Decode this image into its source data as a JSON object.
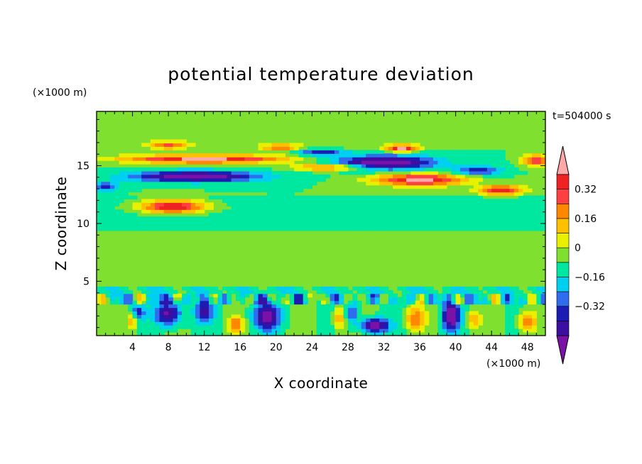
{
  "chart_data": {
    "type": "heatmap",
    "title": "potential temperature deviation",
    "xlabel": "X coordinate",
    "ylabel": "Z coordinate",
    "x_unit": "(×1000 m)",
    "y_unit": "(×1000 m)",
    "time_label": "t=504000 s",
    "xlim": [
      0,
      50
    ],
    "ylim": [
      0.3,
      19.7
    ],
    "x_ticks": [
      4,
      8,
      12,
      16,
      20,
      24,
      28,
      32,
      36,
      40,
      44,
      48
    ],
    "x_tick_labels": [
      "4",
      "8",
      "12",
      "16",
      "20",
      "24",
      "28",
      "32",
      "36",
      "40",
      "44",
      "48"
    ],
    "y_ticks": [
      5,
      10,
      15
    ],
    "y_tick_labels": [
      "5",
      "10",
      "15"
    ],
    "colorbar": {
      "levels": [
        -0.48,
        -0.4,
        -0.32,
        -0.24,
        -0.16,
        -0.08,
        0,
        0.08,
        0.16,
        0.24,
        0.32,
        0.4,
        0.48
      ],
      "tick_values": [
        -0.32,
        -0.16,
        0,
        0.16,
        0.32
      ],
      "tick_labels": [
        "−0.32",
        "−0.16",
        "0",
        "0.16",
        "0.32"
      ],
      "colors": [
        "#7a12a8",
        "#3c0fa0",
        "#1c1cb4",
        "#2f6dee",
        "#00d0f0",
        "#00e8a0",
        "#80e030",
        "#e8f000",
        "#ffc000",
        "#ff8800",
        "#ff4040",
        "#ee2222",
        "#ffa8a8"
      ]
    },
    "features": [
      {
        "kind": "warm",
        "x": 12,
        "z": 15.6,
        "amp": 0.52,
        "sx": 9,
        "sz": 0.35
      },
      {
        "kind": "warm",
        "x": 26,
        "z": 14.9,
        "amp": 0.36,
        "sx": 4,
        "sz": 0.3
      },
      {
        "kind": "warm",
        "x": 36,
        "z": 13.8,
        "amp": 0.52,
        "sx": 5,
        "sz": 0.5
      },
      {
        "kind": "warm",
        "x": 34,
        "z": 16.5,
        "amp": 0.48,
        "sx": 1.6,
        "sz": 0.3
      },
      {
        "kind": "warm",
        "x": 45,
        "z": 12.9,
        "amp": 0.44,
        "sx": 2.5,
        "sz": 0.4
      },
      {
        "kind": "warm",
        "x": 49,
        "z": 15.5,
        "amp": 0.4,
        "sx": 1.5,
        "sz": 0.5
      },
      {
        "kind": "warm",
        "x": 8,
        "z": 16.8,
        "amp": 0.3,
        "sx": 2,
        "sz": 0.3
      },
      {
        "kind": "warm",
        "x": 20.5,
        "z": 16.6,
        "amp": 0.28,
        "sx": 2,
        "sz": 0.3
      },
      {
        "kind": "warm",
        "x": 8.5,
        "z": 11.5,
        "amp": 0.52,
        "sx": 3.5,
        "sz": 0.55
      },
      {
        "kind": "cold",
        "x": 11,
        "z": 14.1,
        "amp": -0.52,
        "sx": 7,
        "sz": 0.45
      },
      {
        "kind": "cold",
        "x": 32,
        "z": 15.3,
        "amp": -0.52,
        "sx": 5.5,
        "sz": 0.6
      },
      {
        "kind": "cold",
        "x": 25,
        "z": 16.2,
        "amp": -0.3,
        "sx": 2.5,
        "sz": 0.3
      },
      {
        "kind": "cold",
        "x": 42.5,
        "z": 14.6,
        "amp": -0.3,
        "sx": 2.5,
        "sz": 0.4
      },
      {
        "kind": "cold",
        "x": 1,
        "z": 13.2,
        "amp": -0.28,
        "sx": 1.5,
        "sz": 0.4
      },
      {
        "kind": "cold",
        "x": 8,
        "z": 2.2,
        "amp": -0.45,
        "sx": 1.4,
        "sz": 1.0
      },
      {
        "kind": "cold",
        "x": 12,
        "z": 2.4,
        "amp": -0.36,
        "sx": 1,
        "sz": 0.9
      },
      {
        "kind": "cold",
        "x": 19,
        "z": 2.0,
        "amp": -0.48,
        "sx": 1.4,
        "sz": 1.1
      },
      {
        "kind": "cold",
        "x": 31,
        "z": 1.2,
        "amp": -0.5,
        "sx": 1.5,
        "sz": 0.6
      },
      {
        "kind": "cold",
        "x": 39.5,
        "z": 2.0,
        "amp": -0.5,
        "sx": 0.9,
        "sz": 1.3
      },
      {
        "kind": "cold",
        "x": 28.5,
        "z": 2.3,
        "amp": -0.3,
        "sx": 0.6,
        "sz": 0.8
      },
      {
        "kind": "cold",
        "x": 4.5,
        "z": 2.3,
        "amp": -0.32,
        "sx": 0.8,
        "sz": 0.6
      },
      {
        "kind": "warm",
        "x": 4,
        "z": 1.7,
        "amp": 0.28,
        "sx": 0.6,
        "sz": 0.9
      },
      {
        "kind": "warm",
        "x": 15.5,
        "z": 1.3,
        "amp": 0.3,
        "sx": 0.8,
        "sz": 0.7
      },
      {
        "kind": "warm",
        "x": 27,
        "z": 1.8,
        "amp": 0.26,
        "sx": 0.6,
        "sz": 1.0
      },
      {
        "kind": "warm",
        "x": 35.5,
        "z": 1.8,
        "amp": 0.3,
        "sx": 1.0,
        "sz": 1.0
      },
      {
        "kind": "warm",
        "x": 48,
        "z": 1.5,
        "amp": 0.3,
        "sx": 1.0,
        "sz": 1.0
      },
      {
        "kind": "warm",
        "x": 42,
        "z": 1.7,
        "amp": 0.22,
        "sx": 0.7,
        "sz": 0.8
      }
    ]
  }
}
